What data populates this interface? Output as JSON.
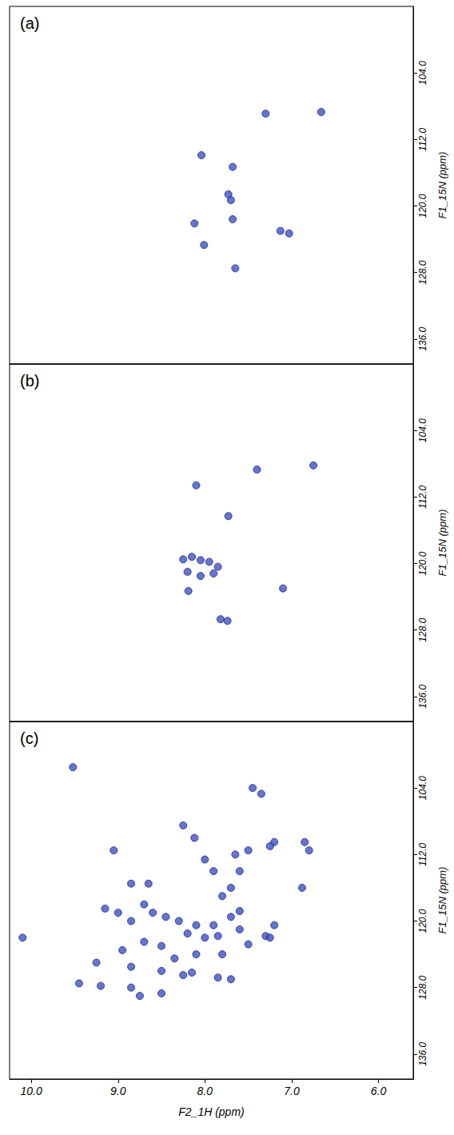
{
  "chart_data": [
    {
      "type": "scatter",
      "title": "(a)",
      "ylabel": "F1_15N (ppm)",
      "xlim": [
        10.25,
        5.6
      ],
      "ylim": [
        96,
        139
      ],
      "xticks": [
        {
          "value": 10,
          "label": "10.0"
        },
        {
          "value": 9,
          "label": "9.0"
        },
        {
          "value": 8,
          "label": "8.0"
        },
        {
          "value": 7,
          "label": "7.0"
        },
        {
          "value": 6,
          "label": "6.0"
        }
      ],
      "yticks": [
        {
          "value": 104,
          "label": "104.0"
        },
        {
          "value": 112,
          "label": "112.0"
        },
        {
          "value": 120,
          "label": "120.0"
        },
        {
          "value": 128,
          "label": "128.0"
        },
        {
          "value": 136,
          "label": "136.0"
        }
      ],
      "tick_labels": "y",
      "color": "#3f51c4",
      "marker": "circle",
      "x": [
        7.3,
        6.66,
        8.04,
        7.68,
        7.73,
        7.7,
        7.68,
        8.12,
        8.01,
        7.03,
        7.13,
        7.65
      ],
      "values": [
        108.9,
        108.7,
        113.9,
        115.3,
        118.6,
        119.3,
        121.6,
        122.1,
        124.7,
        123.3,
        123.0,
        127.5
      ]
    },
    {
      "type": "scatter",
      "title": "(b)",
      "ylabel": "F1_15N (ppm)",
      "xlim": [
        10.25,
        5.6
      ],
      "ylim": [
        96,
        139
      ],
      "xticks": [
        {
          "value": 10,
          "label": "10.0"
        },
        {
          "value": 9,
          "label": "9.0"
        },
        {
          "value": 8,
          "label": "8.0"
        },
        {
          "value": 7,
          "label": "7.0"
        },
        {
          "value": 6,
          "label": "6.0"
        }
      ],
      "yticks": [
        {
          "value": 104,
          "label": "104.0"
        },
        {
          "value": 112,
          "label": "112.0"
        },
        {
          "value": 120,
          "label": "120.0"
        },
        {
          "value": 128,
          "label": "128.0"
        },
        {
          "value": 136,
          "label": "136.0"
        }
      ],
      "tick_labels": "y",
      "color": "#3f51c4",
      "marker": "circle",
      "x": [
        8.1,
        7.73,
        7.4,
        6.75,
        8.25,
        8.15,
        8.05,
        7.95,
        7.85,
        8.2,
        8.05,
        7.9,
        8.19,
        7.1,
        7.74,
        7.82
      ],
      "values": [
        110.6,
        114.3,
        108.7,
        108.2,
        119.5,
        119.2,
        119.6,
        119.8,
        120.4,
        121.0,
        121.5,
        121.2,
        123.3,
        123.0,
        126.9,
        126.7
      ]
    },
    {
      "type": "scatter",
      "title": "(c)",
      "ylabel": "F1_15N (ppm)",
      "xlabel": "F2_1H (ppm)",
      "xlim": [
        10.25,
        5.6
      ],
      "ylim": [
        96,
        139
      ],
      "xticks": [
        {
          "value": 10,
          "label": "10.0"
        },
        {
          "value": 9,
          "label": "9.0"
        },
        {
          "value": 8,
          "label": "8.0"
        },
        {
          "value": 7,
          "label": "7.0"
        },
        {
          "value": 6,
          "label": "6.0"
        }
      ],
      "yticks": [
        {
          "value": 104,
          "label": "104.0"
        },
        {
          "value": 112,
          "label": "112.0"
        },
        {
          "value": 120,
          "label": "120.0"
        },
        {
          "value": 128,
          "label": "128.0"
        },
        {
          "value": 136,
          "label": "136.0"
        }
      ],
      "color": "#3f51c4",
      "marker": "circle",
      "x": [
        9.52,
        10.1,
        9.05,
        8.12,
        8.25,
        7.45,
        7.35,
        8.85,
        8.65,
        8.0,
        7.9,
        7.65,
        7.5,
        7.25,
        7.2,
        6.85,
        6.8,
        6.88,
        7.6,
        7.7,
        7.8,
        9.15,
        9.0,
        8.85,
        8.7,
        8.6,
        8.45,
        8.3,
        8.1,
        7.9,
        7.7,
        7.6,
        8.2,
        8.0,
        7.85,
        7.2,
        7.3,
        7.25,
        8.95,
        8.7,
        8.5,
        8.35,
        8.1,
        7.8,
        9.25,
        8.85,
        8.5,
        8.25,
        8.15,
        7.7,
        7.85,
        9.45,
        9.2,
        8.85,
        8.75,
        8.5,
        7.5,
        7.6
      ],
      "values": [
        101.5,
        122.0,
        111.5,
        110.0,
        108.5,
        104.0,
        104.7,
        115.5,
        115.5,
        112.6,
        114.0,
        112.0,
        111.5,
        111.0,
        110.5,
        110.5,
        111.5,
        116.0,
        114.0,
        116.0,
        117.0,
        118.5,
        119.0,
        120.0,
        118.0,
        119.0,
        119.5,
        120.0,
        120.5,
        120.5,
        119.5,
        118.8,
        121.5,
        122.0,
        121.8,
        120.5,
        121.8,
        122.0,
        123.5,
        122.5,
        123.0,
        124.5,
        124.0,
        124.0,
        125.0,
        125.5,
        126.0,
        126.5,
        126.2,
        127.0,
        126.8,
        127.5,
        127.8,
        128.0,
        129.0,
        128.7,
        122.8,
        121.0
      ]
    }
  ]
}
